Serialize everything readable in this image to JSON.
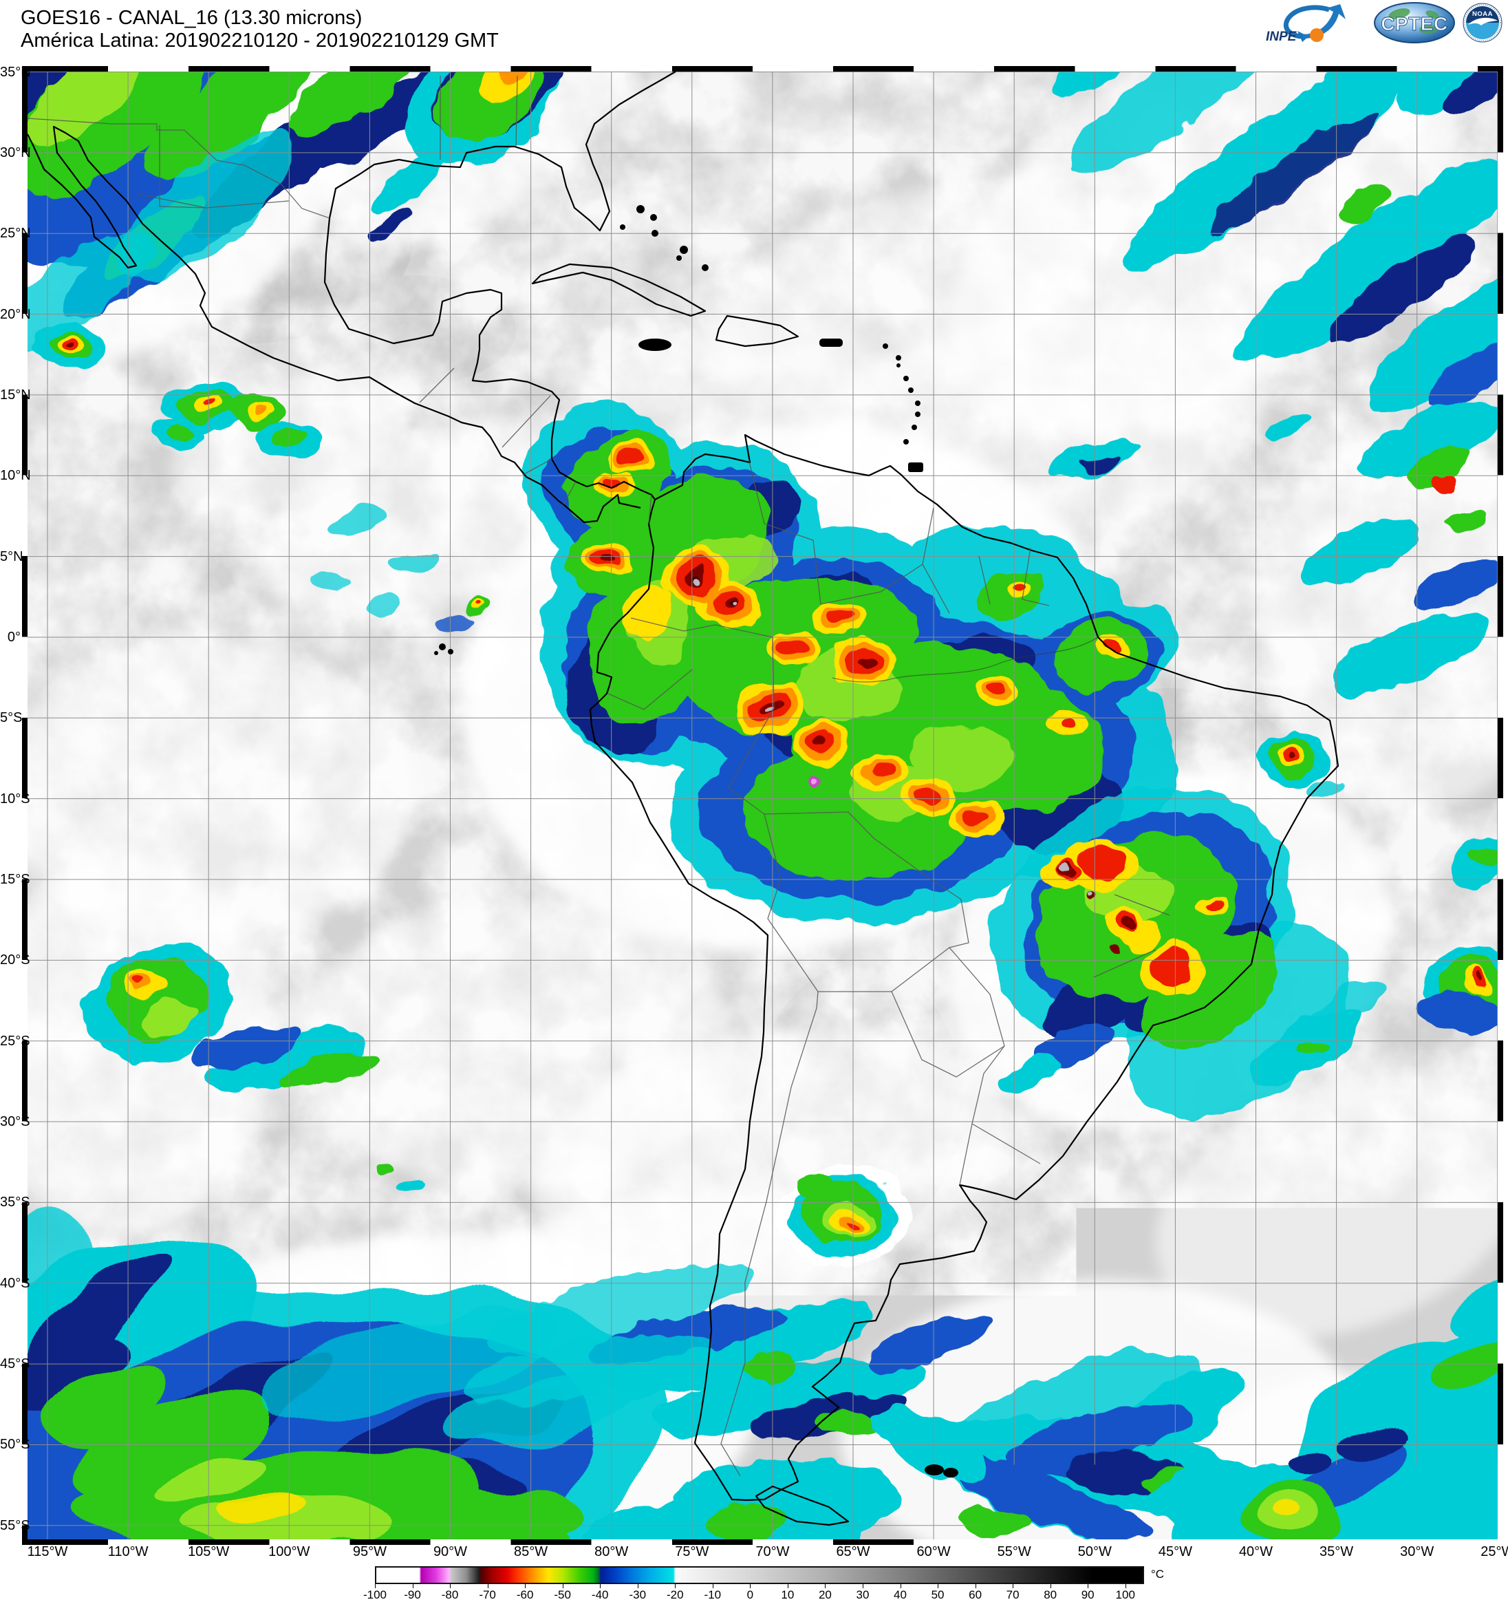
{
  "header": {
    "line1": "GOES16 - CANAL_16 (13.30 microns)",
    "line2": "América Latina: 201902210120 - 201902210129 GMT",
    "satellite": "GOES16",
    "channel": "CANAL_16",
    "wavelength": "13.30 microns",
    "region": "América Latina",
    "time_start": "201902210120",
    "time_end": "201902210129",
    "time_zone": "GMT"
  },
  "logos": {
    "inpe_label": "INPE",
    "cptec_label": "CPTEC",
    "noaa_label": "NOAA"
  },
  "map": {
    "lat_labels": [
      "35°N",
      "30°N",
      "25°N",
      "20°N",
      "15°N",
      "10°N",
      "5°N",
      "0°",
      "5°S",
      "10°S",
      "15°S",
      "20°S",
      "25°S",
      "30°S",
      "35°S",
      "40°S",
      "45°S",
      "50°S",
      "55°S"
    ],
    "lon_labels": [
      "115°W",
      "110°W",
      "105°W",
      "100°W",
      "95°W",
      "90°W",
      "85°W",
      "80°W",
      "75°W",
      "70°W",
      "65°W",
      "60°W",
      "55°W",
      "50°W",
      "45°W",
      "40°W",
      "35°W",
      "30°W",
      "25°W"
    ],
    "grid_color": "#8d8d8d",
    "background_color": "#d2d2d2",
    "coastline_color": "#000000"
  },
  "colorbar": {
    "unit": "°C",
    "min": -100,
    "max": 105,
    "ticks": [
      -100,
      -90,
      -80,
      -70,
      -60,
      -50,
      -40,
      -30,
      -20,
      -10,
      0,
      10,
      20,
      30,
      40,
      50,
      60,
      70,
      80,
      90,
      100
    ],
    "stops": [
      {
        "t": -100,
        "c": "#ffffff"
      },
      {
        "t": -88.5,
        "c": "#ffffff"
      },
      {
        "t": -88,
        "c": "#b400b4"
      },
      {
        "t": -84,
        "c": "#e03ce0"
      },
      {
        "t": -80.5,
        "c": "#ffb4ff"
      },
      {
        "t": -80,
        "c": "#c8c8c8"
      },
      {
        "t": -76,
        "c": "#909090"
      },
      {
        "t": -72.5,
        "c": "#1e1e1e"
      },
      {
        "t": -72,
        "c": "#500000"
      },
      {
        "t": -69,
        "c": "#a00000"
      },
      {
        "t": -65,
        "c": "#e60000"
      },
      {
        "t": -62,
        "c": "#ff3c00"
      },
      {
        "t": -58,
        "c": "#ff9600"
      },
      {
        "t": -54,
        "c": "#ffe600"
      },
      {
        "t": -50,
        "c": "#b4e600"
      },
      {
        "t": -46,
        "c": "#46d200"
      },
      {
        "t": -42,
        "c": "#00b414"
      },
      {
        "t": -40.5,
        "c": "#006e28"
      },
      {
        "t": -40,
        "c": "#001e96"
      },
      {
        "t": -36,
        "c": "#0041c8"
      },
      {
        "t": -32,
        "c": "#0073dc"
      },
      {
        "t": -27,
        "c": "#00aae6"
      },
      {
        "t": -20.5,
        "c": "#00e1e6"
      },
      {
        "t": -20,
        "c": "#fafafa"
      },
      {
        "t": 0,
        "c": "#d7d7d7"
      },
      {
        "t": 20,
        "c": "#b0b0b0"
      },
      {
        "t": 40,
        "c": "#828282"
      },
      {
        "t": 60,
        "c": "#505050"
      },
      {
        "t": 80,
        "c": "#1e1e1e"
      },
      {
        "t": 92,
        "c": "#000000"
      },
      {
        "t": 105,
        "c": "#000000"
      }
    ]
  },
  "palette": {
    "cold_cyan": "#00ccd6",
    "cold_blue": "#1452c8",
    "cold_navy": "#0a2382",
    "cold_green": "#2ec818",
    "cold_bright_green": "#90e428",
    "cold_yellow": "#ffe200",
    "cold_orange": "#ff9400",
    "cold_red": "#ee1c00",
    "cold_dark_red": "#7c0200",
    "overshoot_gray": "#bfb6bf",
    "extreme_magenta": "#c846c8"
  }
}
